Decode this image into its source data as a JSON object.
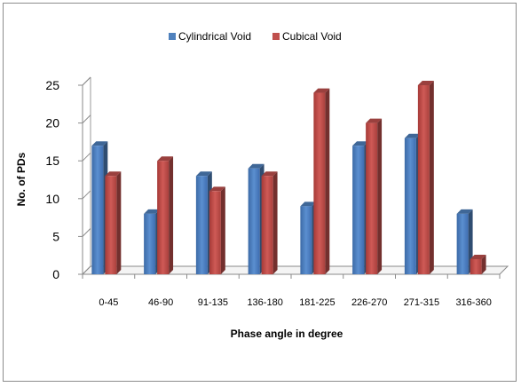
{
  "chart_data": {
    "type": "bar",
    "title": "",
    "xlabel": "Phase angle in degree",
    "ylabel": "No. of PDs",
    "ylim": [
      0,
      25
    ],
    "yticks": [
      0,
      5,
      10,
      15,
      20,
      25
    ],
    "grid": false,
    "legend_position": "top",
    "categories": [
      "0-45",
      "46-90",
      "91-135",
      "136-180",
      "181-225",
      "226-270",
      "271-315",
      "316-360"
    ],
    "series": [
      {
        "name": "Cylindrical Void",
        "color": "#4f81bd",
        "values": [
          17,
          8,
          13,
          14,
          9,
          17,
          18,
          8
        ]
      },
      {
        "name": "Cubical Void",
        "color": "#c0504d",
        "values": [
          13,
          15,
          11,
          13,
          24,
          20,
          25,
          2
        ]
      }
    ]
  }
}
